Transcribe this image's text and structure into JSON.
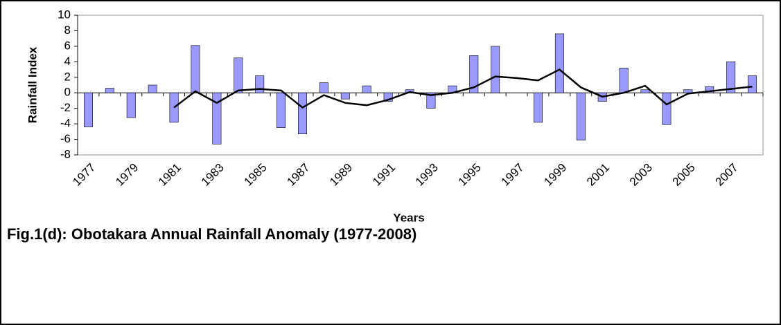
{
  "chart_data": {
    "type": "bar",
    "caption": "Fig.1(d): Obotakara Annual Rainfall Anomaly (1977-2008)",
    "x_label": "Years",
    "y_label": "Rainfall Index",
    "categories": [
      "1977",
      null,
      "1979",
      null,
      "1981",
      null,
      "1983",
      null,
      "1985",
      null,
      "1987",
      null,
      "1989",
      null,
      "1991",
      null,
      "1993",
      null,
      "1995",
      null,
      "1997",
      null,
      "1999",
      null,
      "2001",
      null,
      "2003",
      null,
      "2005",
      null,
      "2007",
      null
    ],
    "series": [
      {
        "type": "bar",
        "color": "#9999ff",
        "values": [
          -4.4,
          0.6,
          -3.2,
          1.0,
          -3.8,
          6.1,
          -6.6,
          4.5,
          2.2,
          -4.5,
          -5.3,
          1.3,
          -0.8,
          0.9,
          -1.1,
          0.4,
          -2.0,
          0.9,
          4.8,
          6.0,
          0,
          -3.8,
          7.6,
          -6.1,
          -1.1,
          3.2,
          0.4,
          -4.1,
          0.4,
          0.8,
          4.0,
          2.2
        ]
      },
      {
        "type": "line",
        "color": "#000000",
        "values": [
          null,
          null,
          null,
          null,
          -1.9,
          0.2,
          -1.3,
          0.3,
          0.5,
          0.3,
          -1.9,
          -0.3,
          -1.3,
          -1.6,
          -0.9,
          0.1,
          -0.3,
          0.0,
          0.7,
          2.1,
          1.9,
          1.6,
          3.0,
          0.7,
          -0.5,
          0.0,
          0.9,
          -1.5,
          -0.1,
          0.2,
          0.5,
          0.8
        ]
      }
    ],
    "ylim": [
      -8,
      10
    ],
    "yticks": [
      -8,
      -6,
      -4,
      -2,
      0,
      2,
      4,
      6,
      8,
      10
    ]
  }
}
